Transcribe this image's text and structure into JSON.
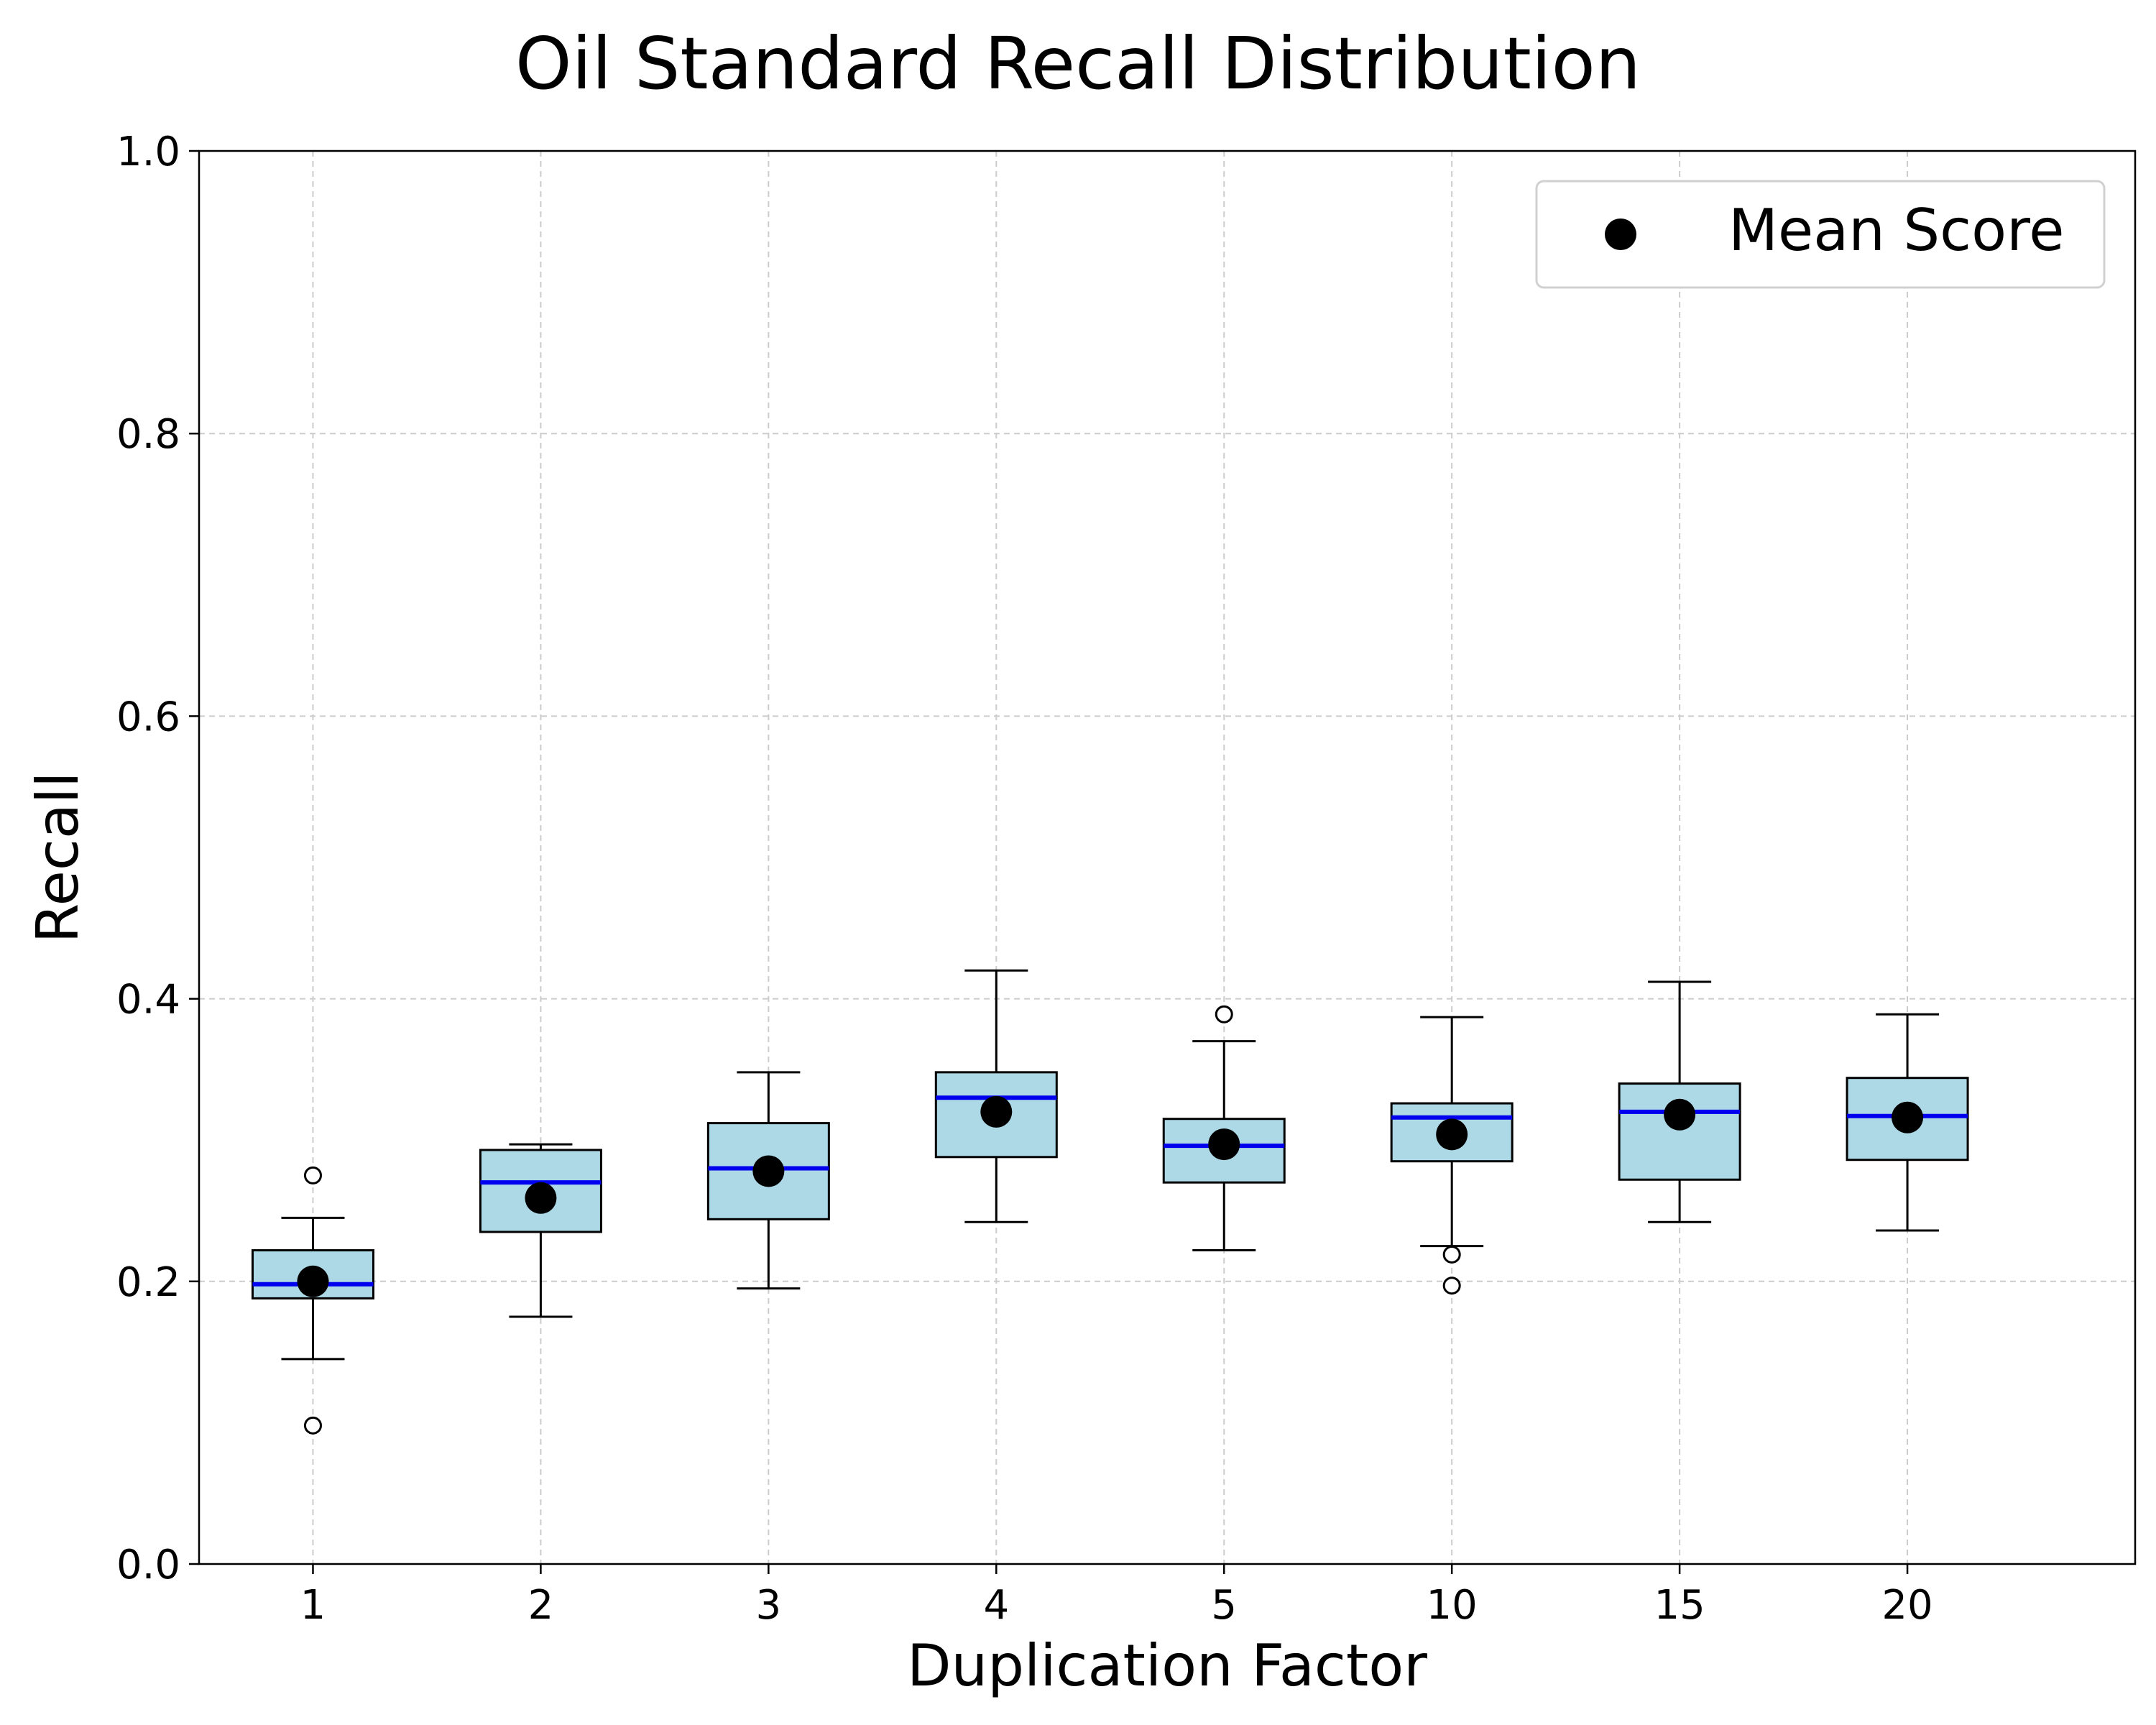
{
  "chart_data": {
    "type": "box",
    "title": "Oil Standard Recall Distribution",
    "xlabel": "Duplication Factor",
    "ylabel": "Recall",
    "categories": [
      "1",
      "2",
      "3",
      "4",
      "5",
      "10",
      "15",
      "20"
    ],
    "ylim": [
      0,
      1
    ],
    "yticks": [
      "0.0",
      "0.2",
      "0.4",
      "0.6",
      "0.8",
      "1.0"
    ],
    "grid": true,
    "legend": {
      "position": "top-right",
      "label": "Mean Score"
    },
    "boxes": [
      {
        "category": "1",
        "q1": 0.188,
        "median": 0.198,
        "q3": 0.222,
        "whisker_low": 0.145,
        "whisker_high": 0.245,
        "mean": 0.2,
        "outliers": [
          0.275,
          0.098
        ]
      },
      {
        "category": "2",
        "q1": 0.235,
        "median": 0.27,
        "q3": 0.293,
        "whisker_low": 0.175,
        "whisker_high": 0.297,
        "mean": 0.259,
        "outliers": []
      },
      {
        "category": "3",
        "q1": 0.244,
        "median": 0.28,
        "q3": 0.312,
        "whisker_low": 0.195,
        "whisker_high": 0.348,
        "mean": 0.278,
        "outliers": []
      },
      {
        "category": "4",
        "q1": 0.288,
        "median": 0.33,
        "q3": 0.348,
        "whisker_low": 0.242,
        "whisker_high": 0.42,
        "mean": 0.32,
        "outliers": []
      },
      {
        "category": "5",
        "q1": 0.27,
        "median": 0.296,
        "q3": 0.315,
        "whisker_low": 0.222,
        "whisker_high": 0.37,
        "mean": 0.297,
        "outliers": [
          0.389
        ]
      },
      {
        "category": "10",
        "q1": 0.285,
        "median": 0.316,
        "q3": 0.326,
        "whisker_low": 0.225,
        "whisker_high": 0.387,
        "mean": 0.304,
        "outliers": [
          0.219,
          0.197
        ]
      },
      {
        "category": "15",
        "q1": 0.272,
        "median": 0.32,
        "q3": 0.34,
        "whisker_low": 0.242,
        "whisker_high": 0.412,
        "mean": 0.318,
        "outliers": []
      },
      {
        "category": "20",
        "q1": 0.286,
        "median": 0.317,
        "q3": 0.344,
        "whisker_low": 0.236,
        "whisker_high": 0.389,
        "mean": 0.316,
        "outliers": []
      }
    ],
    "colors": {
      "box_fill": "#add8e6",
      "median": "#0000ee",
      "mean_marker": "#000000",
      "grid": "#cccccc"
    }
  }
}
